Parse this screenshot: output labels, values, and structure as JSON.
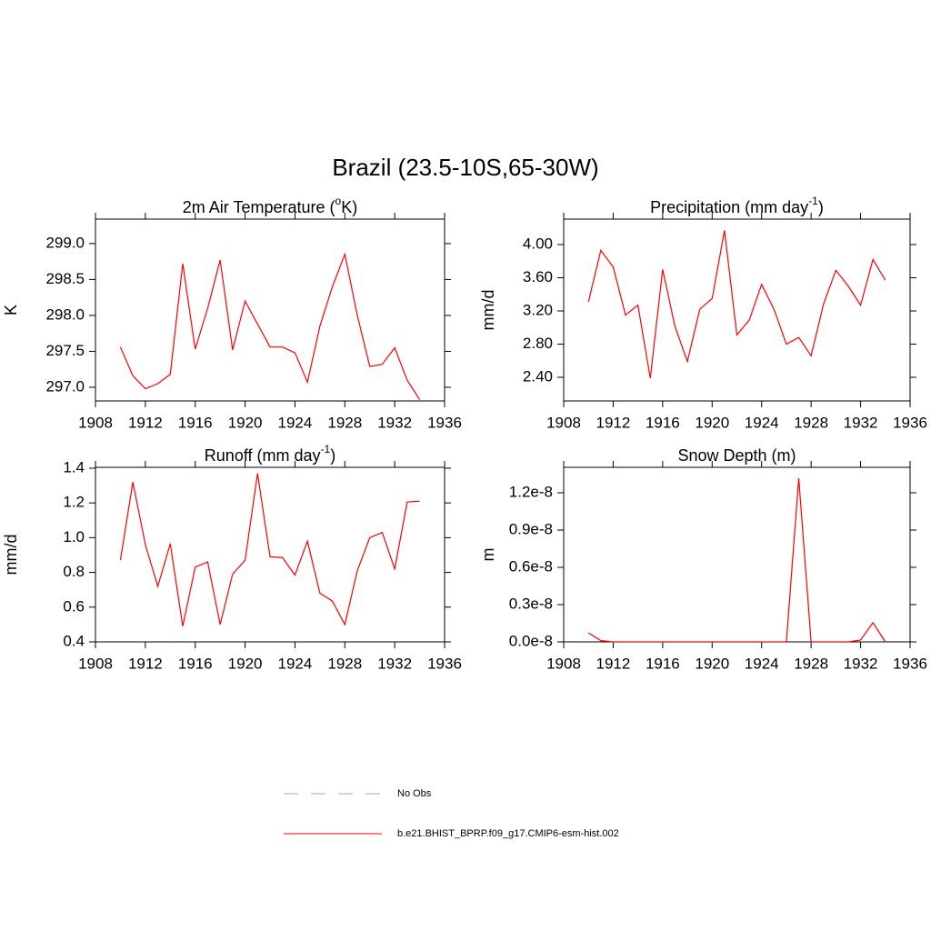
{
  "title": "Brazil (23.5-10S,65-30W)",
  "legend": [
    {
      "name": "No Obs",
      "color": "#9999ff",
      "dashed": true
    },
    {
      "name": "b.e21.BHIST_BPRP.f09_g17.CMIP6-esm-hist.002",
      "color": "#ff0000",
      "dashed": false
    }
  ],
  "chart_data": [
    {
      "type": "line",
      "title": [
        "2m Air Temperature (",
        "o",
        "K)"
      ],
      "ylabel": "K",
      "color": "#ff0000",
      "x": [
        1910,
        1911,
        1912,
        1913,
        1914,
        1915,
        1916,
        1917,
        1918,
        1919,
        1920,
        1921,
        1922,
        1923,
        1924,
        1925,
        1926,
        1927,
        1928,
        1929,
        1930,
        1931,
        1932,
        1933,
        1934
      ],
      "values": [
        297.56,
        297.16,
        296.98,
        297.05,
        297.18,
        298.72,
        297.53,
        298.1,
        298.77,
        297.52,
        298.2,
        297.88,
        297.56,
        297.56,
        297.48,
        297.07,
        297.85,
        298.4,
        298.85,
        298.0,
        297.29,
        297.32,
        297.55,
        297.1,
        296.83
      ],
      "xlim": [
        1908,
        1936
      ],
      "xticks": [
        1908,
        1912,
        1916,
        1920,
        1924,
        1928,
        1932,
        1936
      ],
      "ylim": [
        296.81,
        299.34
      ],
      "yticks": [
        {
          "value": 297,
          "label": "297.0"
        },
        {
          "value": 297.5,
          "label": "297.5"
        },
        {
          "value": 298,
          "label": "298.0"
        },
        {
          "value": 298.5,
          "label": "298.5"
        },
        {
          "value": 299,
          "label": "299.0"
        }
      ]
    },
    {
      "type": "line",
      "title": [
        "Precipitation (mm day",
        "-1",
        ")"
      ],
      "ylabel": "mm/d",
      "color": "#ff0000",
      "x": [
        1910,
        1911,
        1912,
        1913,
        1914,
        1915,
        1916,
        1917,
        1918,
        1919,
        1920,
        1921,
        1922,
        1923,
        1924,
        1925,
        1926,
        1927,
        1928,
        1929,
        1930,
        1931,
        1932,
        1933,
        1934
      ],
      "values": [
        3.31,
        3.93,
        3.73,
        3.15,
        3.27,
        2.39,
        3.7,
        3.01,
        2.59,
        3.22,
        3.35,
        4.17,
        2.91,
        3.09,
        3.52,
        3.22,
        2.8,
        2.88,
        2.66,
        3.28,
        3.69,
        3.5,
        3.27,
        3.82,
        3.57
      ],
      "xlim": [
        1908,
        1936
      ],
      "xticks": [
        1908,
        1912,
        1916,
        1920,
        1924,
        1928,
        1932,
        1936
      ],
      "ylim": [
        2.115,
        4.307
      ],
      "yticks": [
        {
          "value": 2.4,
          "label": "2.40"
        },
        {
          "value": 2.8,
          "label": "2.80"
        },
        {
          "value": 3.2,
          "label": "3.20"
        },
        {
          "value": 3.6,
          "label": "3.60"
        },
        {
          "value": 4,
          "label": "4.00"
        }
      ]
    },
    {
      "type": "line",
      "title": [
        "Runoff (mm day",
        "-1",
        ")"
      ],
      "ylabel": "mm/d",
      "color": "#ff0000",
      "x": [
        1910,
        1911,
        1912,
        1913,
        1914,
        1915,
        1916,
        1917,
        1918,
        1919,
        1920,
        1921,
        1922,
        1923,
        1924,
        1925,
        1926,
        1927,
        1928,
        1929,
        1930,
        1931,
        1932,
        1933,
        1934
      ],
      "values": [
        0.87,
        1.32,
        0.96,
        0.72,
        0.965,
        0.49,
        0.83,
        0.86,
        0.5,
        0.79,
        0.87,
        1.37,
        0.89,
        0.885,
        0.785,
        0.98,
        0.68,
        0.635,
        0.5,
        0.81,
        1.0,
        1.03,
        0.82,
        1.205,
        1.21
      ],
      "xlim": [
        1908,
        1936
      ],
      "xticks": [
        1908,
        1912,
        1916,
        1920,
        1924,
        1928,
        1932,
        1936
      ],
      "ylim": [
        0.4,
        1.405
      ],
      "yticks": [
        0.4,
        0.6,
        0.8,
        {
          "value": 1,
          "label": "1.0"
        },
        1.2,
        1.4
      ]
    },
    {
      "type": "line",
      "title": [
        "Snow Depth (m)"
      ],
      "ylabel": "m",
      "color": "#ff0000",
      "x": [
        1910,
        1911,
        1912,
        1913,
        1914,
        1915,
        1916,
        1917,
        1918,
        1919,
        1920,
        1921,
        1922,
        1923,
        1924,
        1925,
        1926,
        1927,
        1928,
        1929,
        1930,
        1931,
        1932,
        1933,
        1934
      ],
      "values": [
        7.3e-10,
        1e-10,
        0,
        0,
        0,
        0,
        0,
        0,
        0,
        0,
        0,
        0,
        0,
        0,
        0,
        0,
        0,
        1.317e-08,
        0,
        0,
        0,
        0,
        1.5e-10,
        1.54e-09,
        0
      ],
      "xlim": [
        1908,
        1936
      ],
      "xticks": [
        1908,
        1912,
        1916,
        1920,
        1924,
        1928,
        1932,
        1936
      ],
      "ylim": [
        0,
        1.405e-08
      ],
      "yticks": [
        {
          "value": 0,
          "label": "0.0e-8"
        },
        {
          "value": 3e-09,
          "label": "0.3e-8"
        },
        {
          "value": 6e-09,
          "label": "0.6e-8"
        },
        {
          "value": 9e-09,
          "label": "0.9e-8"
        },
        {
          "value": 1.2e-08,
          "label": "1.2e-8"
        }
      ]
    }
  ]
}
